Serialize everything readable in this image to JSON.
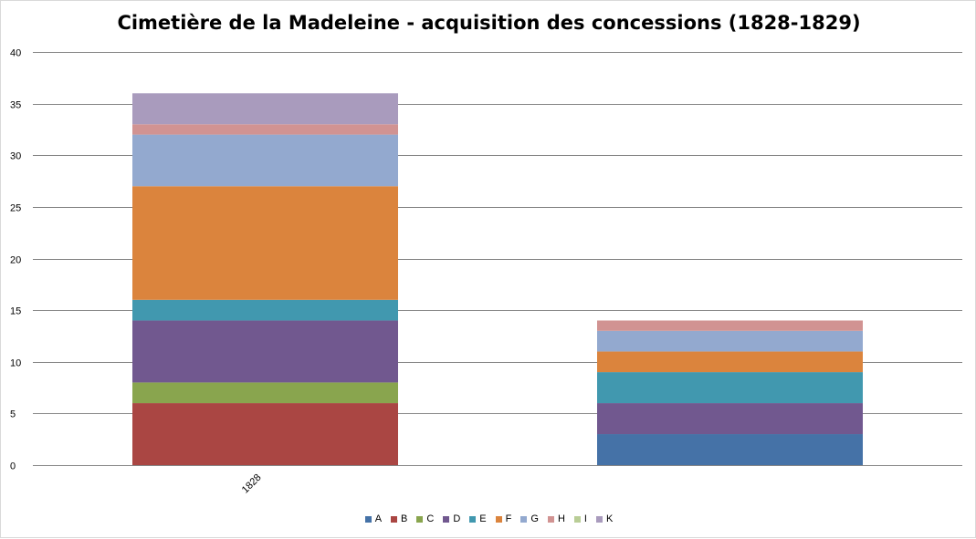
{
  "chart_data": {
    "type": "bar",
    "stacked": true,
    "title": "Cimetière de la Madeleine - acquisition des concessions (1828-1829)",
    "xlabel": "",
    "ylabel": "",
    "ylim": [
      0,
      40
    ],
    "yticks": [
      0,
      5,
      10,
      15,
      20,
      25,
      30,
      35,
      40
    ],
    "categories": [
      "1828",
      ""
    ],
    "grid": true,
    "legend_position": "bottom",
    "series": [
      {
        "name": "A",
        "color": "#4572a7",
        "values": [
          0,
          3
        ]
      },
      {
        "name": "B",
        "color": "#aa4643",
        "values": [
          6,
          0
        ]
      },
      {
        "name": "C",
        "color": "#89a54e",
        "values": [
          2,
          0
        ]
      },
      {
        "name": "D",
        "color": "#71588f",
        "values": [
          6,
          3
        ]
      },
      {
        "name": "E",
        "color": "#4198af",
        "values": [
          2,
          3
        ]
      },
      {
        "name": "F",
        "color": "#db843d",
        "values": [
          11,
          2
        ]
      },
      {
        "name": "G",
        "color": "#93a9cf",
        "values": [
          5,
          2
        ]
      },
      {
        "name": "H",
        "color": "#d19392",
        "values": [
          1,
          1
        ]
      },
      {
        "name": "I",
        "color": "#b9cd96",
        "values": [
          0,
          0
        ]
      },
      {
        "name": "K",
        "color": "#a99bbd",
        "values": [
          3,
          0
        ]
      }
    ]
  }
}
